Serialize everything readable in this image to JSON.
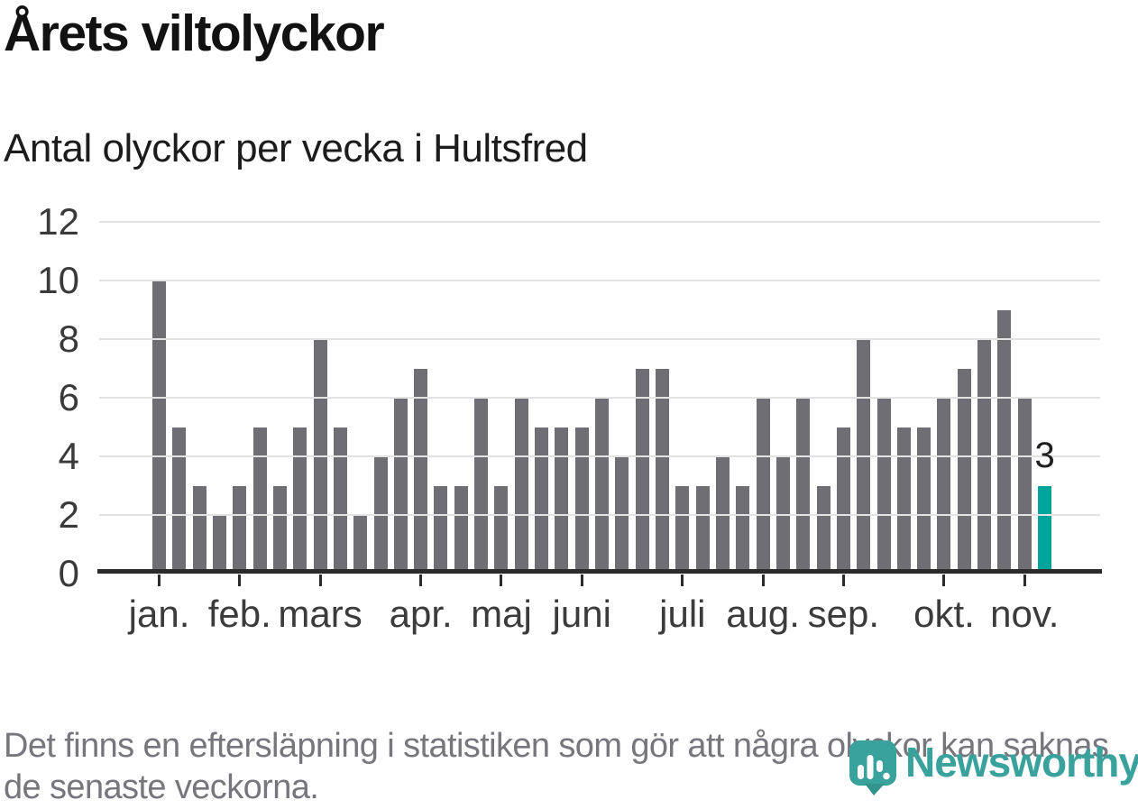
{
  "title": "Årets viltolyckor",
  "subtitle": "Antal olyckor per vecka i Hultsfred",
  "footnote": "Det finns en eftersläpning i statistiken som gör att några olyckor kan saknas de senaste veckorna.",
  "logo": {
    "brand": "Newsworthy",
    "icon": "bar-chart-pin-icon",
    "color": "#3AA29D"
  },
  "chart_data": {
    "type": "bar",
    "title": "Årets viltolyckor",
    "subtitle": "Antal olyckor per vecka i Hultsfred",
    "x_unit": "vecka (weekly bars, Jan–Nov)",
    "values": [
      10,
      5,
      3,
      2,
      3,
      5,
      3,
      5,
      8,
      5,
      2,
      4,
      6,
      7,
      3,
      3,
      6,
      3,
      6,
      5,
      5,
      5,
      6,
      4,
      7,
      7,
      3,
      3,
      4,
      3,
      6,
      4,
      6,
      3,
      5,
      8,
      6,
      5,
      5,
      6,
      7,
      8,
      9,
      6,
      3
    ],
    "highlight_last": true,
    "last_value_label": "3",
    "month_ticks": [
      {
        "label": "jan.",
        "week": 1
      },
      {
        "label": "feb.",
        "week": 5
      },
      {
        "label": "mars",
        "week": 9
      },
      {
        "label": "apr.",
        "week": 14
      },
      {
        "label": "maj",
        "week": 18
      },
      {
        "label": "juni",
        "week": 22
      },
      {
        "label": "juli",
        "week": 27
      },
      {
        "label": "aug.",
        "week": 31
      },
      {
        "label": "sep.",
        "week": 35
      },
      {
        "label": "okt.",
        "week": 40
      },
      {
        "label": "nov.",
        "week": 44
      }
    ],
    "yticks": [
      0,
      2,
      4,
      6,
      8,
      10,
      12
    ],
    "ylim": [
      0,
      12
    ],
    "grid": "horizontal",
    "legend": "none",
    "colors": {
      "bar": "#6F6E74",
      "highlight": "#00A49A",
      "axis": "#2b2b2b",
      "gridline": "#e3e3e3"
    }
  }
}
